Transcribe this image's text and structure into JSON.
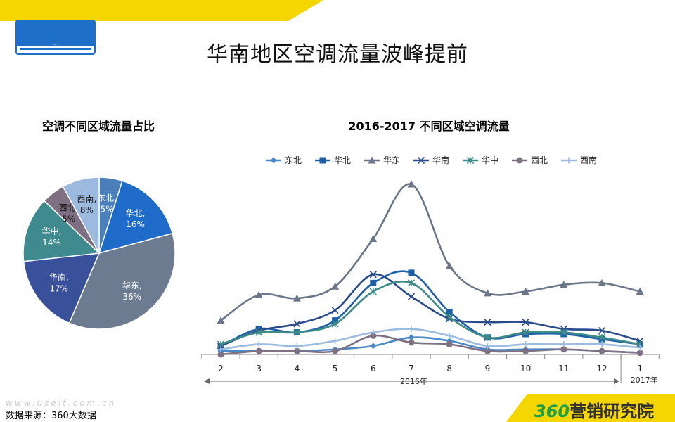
{
  "title": "华南地区空调流量波峰提前",
  "source": "数据来源：360大数据",
  "watermark": "www.useit.com.cn",
  "brand": {
    "number": "360",
    "text": "营销研究院"
  },
  "colors": {
    "yellow": "#f5d600",
    "blue": "#1e6fc8"
  },
  "chart_data": [
    {
      "type": "pie",
      "title": "空调不同区域流量占比",
      "slices": [
        {
          "name": "东北",
          "value": 5,
          "label": "5%",
          "color": "#4a7fbc"
        },
        {
          "name": "华北",
          "value": 16,
          "label": "16%",
          "color": "#1f6bc9"
        },
        {
          "name": "华东",
          "value": 36,
          "label": "36%",
          "color": "#6d7b91"
        },
        {
          "name": "华南",
          "value": 17,
          "label": "17%",
          "color": "#39509a"
        },
        {
          "name": "华中",
          "value": 14,
          "label": "14%",
          "color": "#3f8a8f"
        },
        {
          "name": "西北",
          "value": 5,
          "label": "5%",
          "color": "#7f6f82"
        },
        {
          "name": "西南",
          "value": 8,
          "label": "8%",
          "color": "#9cb9de"
        }
      ]
    },
    {
      "type": "line",
      "title": "2016-2017 不同区域空调流量",
      "categories": [
        "2",
        "3",
        "4",
        "5",
        "6",
        "7",
        "8",
        "9",
        "10",
        "11",
        "12",
        "1"
      ],
      "year_labels": [
        "2016年",
        "2017年"
      ],
      "ylim": [
        0,
        100
      ],
      "legend": "top",
      "series": [
        {
          "name": "东北",
          "color": "#4a88c8",
          "marker": "diamond",
          "values": [
            2,
            2,
            2,
            3,
            5,
            10,
            8,
            3,
            3,
            3,
            2,
            1
          ]
        },
        {
          "name": "华北",
          "color": "#1f5fa8",
          "marker": "square",
          "values": [
            5,
            15,
            13,
            20,
            42,
            48,
            25,
            10,
            12,
            12,
            9,
            6
          ]
        },
        {
          "name": "华东",
          "color": "#6b7689",
          "marker": "triangle",
          "values": [
            20,
            35,
            33,
            40,
            68,
            100,
            52,
            36,
            37,
            41,
            42,
            37
          ]
        },
        {
          "name": "华南",
          "color": "#2a4a8c",
          "marker": "x",
          "values": [
            5,
            14,
            18,
            26,
            47,
            34,
            21,
            19,
            19,
            15,
            14,
            8
          ]
        },
        {
          "name": "华中",
          "color": "#3d8c88",
          "marker": "star",
          "values": [
            6,
            13,
            13,
            18,
            37,
            42,
            22,
            10,
            13,
            13,
            10,
            6
          ]
        },
        {
          "name": "西北",
          "color": "#7e7182",
          "marker": "circle",
          "values": [
            0,
            2,
            2,
            2,
            11,
            7,
            6,
            2,
            2,
            3,
            2,
            1
          ]
        },
        {
          "name": "西南",
          "color": "#9bbbe0",
          "marker": "plus",
          "values": [
            3,
            6,
            5,
            8,
            13,
            15,
            11,
            5,
            6,
            6,
            6,
            4
          ]
        }
      ]
    }
  ]
}
